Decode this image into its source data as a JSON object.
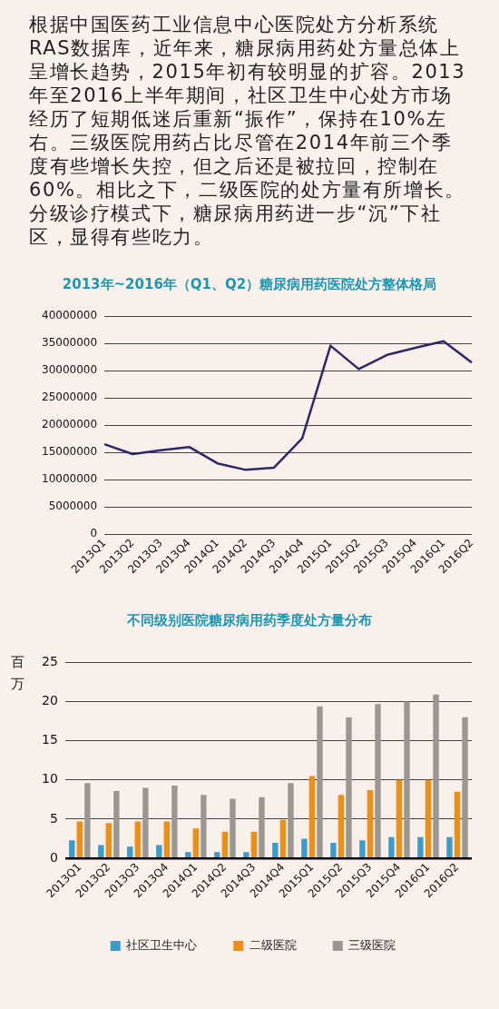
{
  "chart_data": [
    {
      "type": "other",
      "annotations": [
        "根据中国医药工业信息中心医院处方分析系统RAS数据库，近年来，糖尿病用药处方量总体上呈增长趋势，2015年初有较明显的扩容。2013年至2016上半年期间，社区卫生中心处方市场经历了短期低迷后重新“振作”，保持在10%左右。三级医院用药占比尽管在2014年前三个季度有些增长失控，但之后还是被拉回，控制在60%。相比之下，二级医院的处方量有所增长。分级诊疗模式下，糖尿病用药进一步“沉”下社区，显得有些吃力。"
      ]
    },
    {
      "type": "line",
      "title": "2013年~2016年（Q1、Q2）糖尿病用药医院处方整体格局",
      "categories": [
        "2013Q1",
        "2013Q2",
        "2013Q3",
        "2013Q4",
        "2014Q1",
        "2014Q2",
        "2014Q3",
        "2014Q4",
        "2015Q1",
        "2015Q2",
        "2015Q3",
        "2015Q4",
        "2016Q1",
        "2016Q2"
      ],
      "series": [
        {
          "color": "#2e2868",
          "values": [
            16500000,
            14700000,
            15400000,
            16000000,
            13000000,
            11800000,
            12200000,
            17600000,
            34600000,
            30300000,
            32900000,
            34200000,
            35400000,
            31500000
          ]
        }
      ],
      "ylim": [
        0,
        40000000
      ],
      "yticks": [
        0,
        5000000,
        10000000,
        15000000,
        20000000,
        25000000,
        30000000,
        35000000,
        40000000
      ],
      "grid": "y",
      "legend": false,
      "marker": "none"
    },
    {
      "type": "bar",
      "title": "不同级别医院糖尿病用药季度处方量分布",
      "ylabel": "百万",
      "categories": [
        "2013Q1",
        "2013Q2",
        "2013Q3",
        "2013Q4",
        "2014Q1",
        "2014Q2",
        "2014Q3",
        "2014Q4",
        "2015Q1",
        "2015Q2",
        "2015Q3",
        "2015Q4",
        "2016Q1",
        "2016Q2"
      ],
      "series": [
        {
          "name": "社区卫生中心",
          "color": "#3a9cc9",
          "values": [
            2.3,
            1.7,
            1.5,
            1.7,
            0.8,
            0.8,
            0.8,
            2.0,
            2.5,
            2.0,
            2.3,
            2.7,
            2.7,
            2.7
          ]
        },
        {
          "name": "二级医院",
          "color": "#ef8e12",
          "values": [
            4.7,
            4.5,
            4.7,
            4.7,
            3.8,
            3.4,
            3.4,
            4.9,
            10.5,
            8.1,
            8.7,
            10.0,
            10.0,
            8.5
          ]
        },
        {
          "name": "三级医院",
          "color": "#9a9694",
          "values": [
            9.6,
            8.6,
            9.0,
            9.3,
            8.1,
            7.6,
            7.8,
            9.6,
            19.4,
            18.0,
            19.7,
            20.0,
            20.9,
            18.0
          ]
        }
      ],
      "ylim": [
        0,
        25
      ],
      "yticks": [
        0,
        5,
        10,
        15,
        20,
        25
      ],
      "grid": "y",
      "legend": "bottom"
    }
  ]
}
